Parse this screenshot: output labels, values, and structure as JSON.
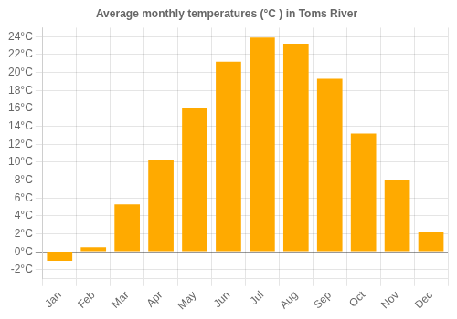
{
  "chart_data": {
    "type": "bar",
    "title": "Average monthly temperatures (°C ) in Toms River",
    "categories": [
      "Jan",
      "Feb",
      "Mar",
      "Apr",
      "May",
      "Jun",
      "Jul",
      "Aug",
      "Sep",
      "Oct",
      "Nov",
      "Dec"
    ],
    "values": [
      -1.0,
      0.5,
      5.3,
      10.3,
      16.0,
      21.2,
      23.9,
      23.2,
      19.3,
      13.2,
      8.0,
      2.2
    ],
    "color": "#FFAA00",
    "ylim": [
      -3,
      25
    ],
    "yticks": [
      {
        "value": -2,
        "label": "-2°C"
      },
      {
        "value": 0,
        "label": "0°C"
      },
      {
        "value": 2,
        "label": "2°C"
      },
      {
        "value": 4,
        "label": "4°C"
      },
      {
        "value": 6,
        "label": "6°C"
      },
      {
        "value": 8,
        "label": "8°C"
      },
      {
        "value": 10,
        "label": "10°C"
      },
      {
        "value": 12,
        "label": "12°C"
      },
      {
        "value": 14,
        "label": "14°C"
      },
      {
        "value": 16,
        "label": "16°C"
      },
      {
        "value": 18,
        "label": "18°C"
      },
      {
        "value": 20,
        "label": "20°C"
      },
      {
        "value": 22,
        "label": "22°C"
      },
      {
        "value": 24,
        "label": "24°C"
      }
    ],
    "grid": true
  }
}
